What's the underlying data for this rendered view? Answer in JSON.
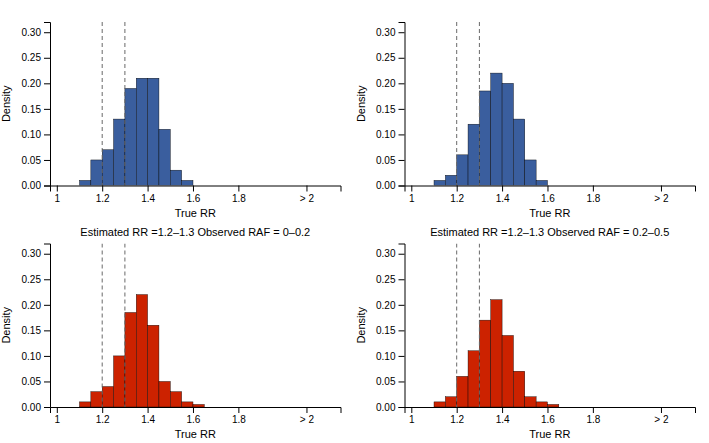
{
  "chart_data": [
    {
      "type": "histogram",
      "color": "#3A5E9E",
      "bins": [
        1.1,
        1.15,
        1.2,
        1.25,
        1.3,
        1.35,
        1.4,
        1.45,
        1.5,
        1.55,
        1.6,
        2.1
      ],
      "values": [
        0.01,
        0.05,
        0.07,
        0.13,
        0.19,
        0.21,
        0.21,
        0.11,
        0.03,
        0.01,
        0.0
      ],
      "vlines": [
        1.2,
        1.3
      ],
      "xlabel": "True RR",
      "ylabel": "Density",
      "xlim": [
        0.97,
        2.25
      ],
      "xticks": [
        1,
        1.2,
        1.4,
        1.6,
        1.8,
        {
          "value": 2.1,
          "label": "> 2"
        }
      ],
      "ylim": [
        0,
        0.32
      ],
      "yticks": [
        {
          "value": 0,
          "label": "0.00"
        },
        {
          "value": 0.05,
          "label": "0.05"
        },
        {
          "value": 0.1,
          "label": "0.10"
        },
        {
          "value": 0.15,
          "label": "0.15"
        },
        {
          "value": 0.2,
          "label": "0.20"
        },
        {
          "value": 0.25,
          "label": "0.25"
        },
        {
          "value": 0.3,
          "label": "0.30"
        }
      ]
    },
    {
      "type": "histogram",
      "color": "#3A5E9E",
      "bins": [
        1.1,
        1.15,
        1.2,
        1.25,
        1.3,
        1.35,
        1.4,
        1.45,
        1.5,
        1.55,
        1.6,
        2.1
      ],
      "values": [
        0.01,
        0.02,
        0.06,
        0.12,
        0.185,
        0.22,
        0.2,
        0.13,
        0.05,
        0.01,
        0.0
      ],
      "vlines": [
        1.2,
        1.3
      ],
      "xlabel": "True RR",
      "ylabel": "Density",
      "xlim": [
        0.97,
        2.25
      ],
      "xticks": [
        1,
        1.2,
        1.4,
        1.6,
        1.8,
        {
          "value": 2.1,
          "label": "> 2"
        }
      ],
      "ylim": [
        0,
        0.32
      ],
      "yticks": [
        {
          "value": 0,
          "label": "0.00"
        },
        {
          "value": 0.05,
          "label": "0.05"
        },
        {
          "value": 0.1,
          "label": "0.10"
        },
        {
          "value": 0.15,
          "label": "0.15"
        },
        {
          "value": 0.2,
          "label": "0.20"
        },
        {
          "value": 0.25,
          "label": "0.25"
        },
        {
          "value": 0.3,
          "label": "0.30"
        }
      ]
    },
    {
      "type": "histogram",
      "color": "#CC2200",
      "title": "Estimated RR =1.2–1.3  Observed RAF = 0–0.2",
      "bins": [
        1.1,
        1.15,
        1.2,
        1.25,
        1.3,
        1.35,
        1.4,
        1.45,
        1.5,
        1.55,
        1.6,
        2.1
      ],
      "values": [
        0.01,
        0.03,
        0.04,
        0.1,
        0.185,
        0.22,
        0.16,
        0.05,
        0.03,
        0.01,
        0.005
      ],
      "vlines": [
        1.2,
        1.3
      ],
      "xlabel": "True RR",
      "ylabel": "Density",
      "xlim": [
        0.97,
        2.25
      ],
      "xticks": [
        1,
        1.2,
        1.4,
        1.6,
        1.8,
        {
          "value": 2.1,
          "label": "> 2"
        }
      ],
      "ylim": [
        0,
        0.32
      ],
      "yticks": [
        {
          "value": 0,
          "label": "0.00"
        },
        {
          "value": 0.05,
          "label": "0.05"
        },
        {
          "value": 0.1,
          "label": "0.10"
        },
        {
          "value": 0.15,
          "label": "0.15"
        },
        {
          "value": 0.2,
          "label": "0.20"
        },
        {
          "value": 0.25,
          "label": "0.25"
        },
        {
          "value": 0.3,
          "label": "0.30"
        }
      ]
    },
    {
      "type": "histogram",
      "color": "#CC2200",
      "title": "Estimated RR =1.2–1.3  Observed RAF = 0.2–0.5",
      "bins": [
        1.1,
        1.15,
        1.2,
        1.25,
        1.3,
        1.35,
        1.4,
        1.45,
        1.5,
        1.55,
        1.6,
        2.1
      ],
      "values": [
        0.01,
        0.02,
        0.06,
        0.11,
        0.17,
        0.21,
        0.14,
        0.07,
        0.02,
        0.01,
        0.005
      ],
      "vlines": [
        1.2,
        1.3
      ],
      "xlabel": "True RR",
      "ylabel": "Density",
      "xlim": [
        0.97,
        2.25
      ],
      "xticks": [
        1,
        1.2,
        1.4,
        1.6,
        1.8,
        {
          "value": 2.1,
          "label": "> 2"
        }
      ],
      "ylim": [
        0,
        0.32
      ],
      "yticks": [
        {
          "value": 0,
          "label": "0.00"
        },
        {
          "value": 0.05,
          "label": "0.05"
        },
        {
          "value": 0.1,
          "label": "0.10"
        },
        {
          "value": 0.15,
          "label": "0.15"
        },
        {
          "value": 0.2,
          "label": "0.20"
        },
        {
          "value": 0.25,
          "label": "0.25"
        },
        {
          "value": 0.3,
          "label": "0.30"
        }
      ]
    }
  ]
}
